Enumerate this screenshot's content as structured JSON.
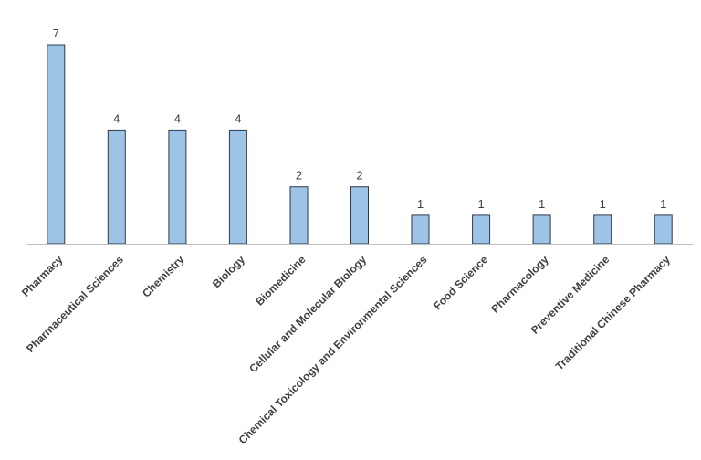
{
  "chart_data": {
    "type": "bar",
    "title": "",
    "xlabel": "",
    "ylabel": "",
    "categories": [
      "Pharmacy",
      "Pharmaceutical Sciences",
      "Chemistry",
      "Biology",
      "Biomedicine",
      "Cellular and Molecular Biology",
      "Chemical Toxicology and Environmental Sciences",
      "Food Science",
      "Pharmacology",
      "Preventive Medicine",
      "Traditional Chinese Pharmacy"
    ],
    "values": [
      7,
      4,
      4,
      4,
      2,
      2,
      1,
      1,
      1,
      1,
      1
    ],
    "ylim": [
      0,
      7
    ],
    "grid": false,
    "legend": "none",
    "data_labels": true,
    "colors": {
      "bar_fill": "#9dc3e6",
      "bar_stroke": "#2f3b4a",
      "text": "#404040",
      "axis": "#bfbfbf"
    }
  }
}
